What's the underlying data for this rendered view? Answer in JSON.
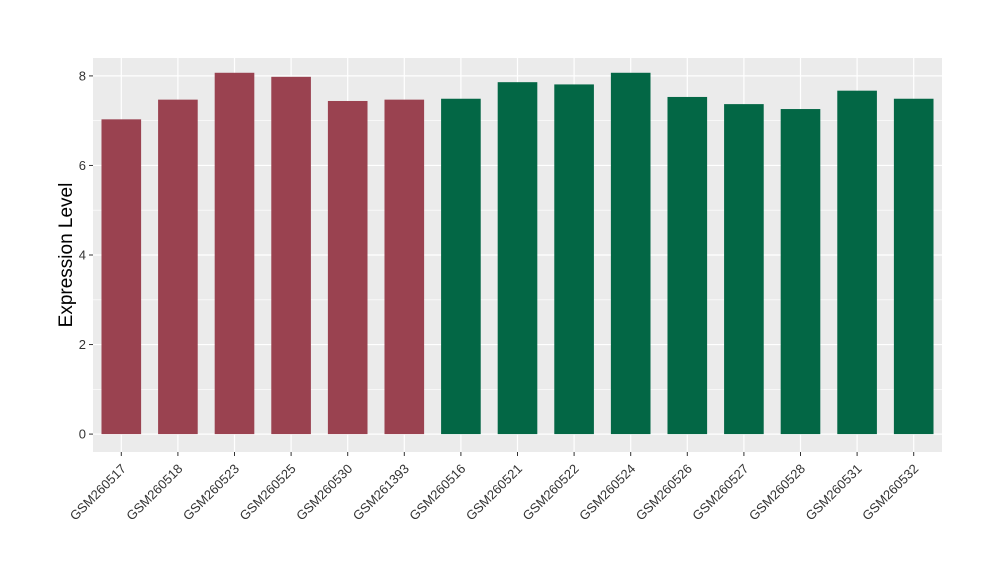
{
  "chart_data": {
    "type": "bar",
    "ylabel": "Expression Level",
    "xlabel": "",
    "ylim": [
      -0.4,
      8.4
    ],
    "yticks": [
      0,
      2,
      4,
      6,
      8
    ],
    "grid": true,
    "categories": [
      "GSM260517",
      "GSM260518",
      "GSM260523",
      "GSM260525",
      "GSM260530",
      "GSM261393",
      "GSM260516",
      "GSM260521",
      "GSM260522",
      "GSM260524",
      "GSM260526",
      "GSM260527",
      "GSM260528",
      "GSM260531",
      "GSM260532"
    ],
    "values": [
      7.03,
      7.47,
      8.07,
      7.98,
      7.44,
      7.47,
      7.49,
      7.86,
      7.81,
      8.07,
      7.53,
      7.37,
      7.26,
      7.67,
      7.49
    ],
    "groups": [
      0,
      0,
      0,
      0,
      0,
      0,
      1,
      1,
      1,
      1,
      1,
      1,
      1,
      1,
      1
    ],
    "group_colors": [
      "#9a4250",
      "#036745"
    ],
    "panel_background": "#ebebeb",
    "grid_color": "#ffffff"
  }
}
